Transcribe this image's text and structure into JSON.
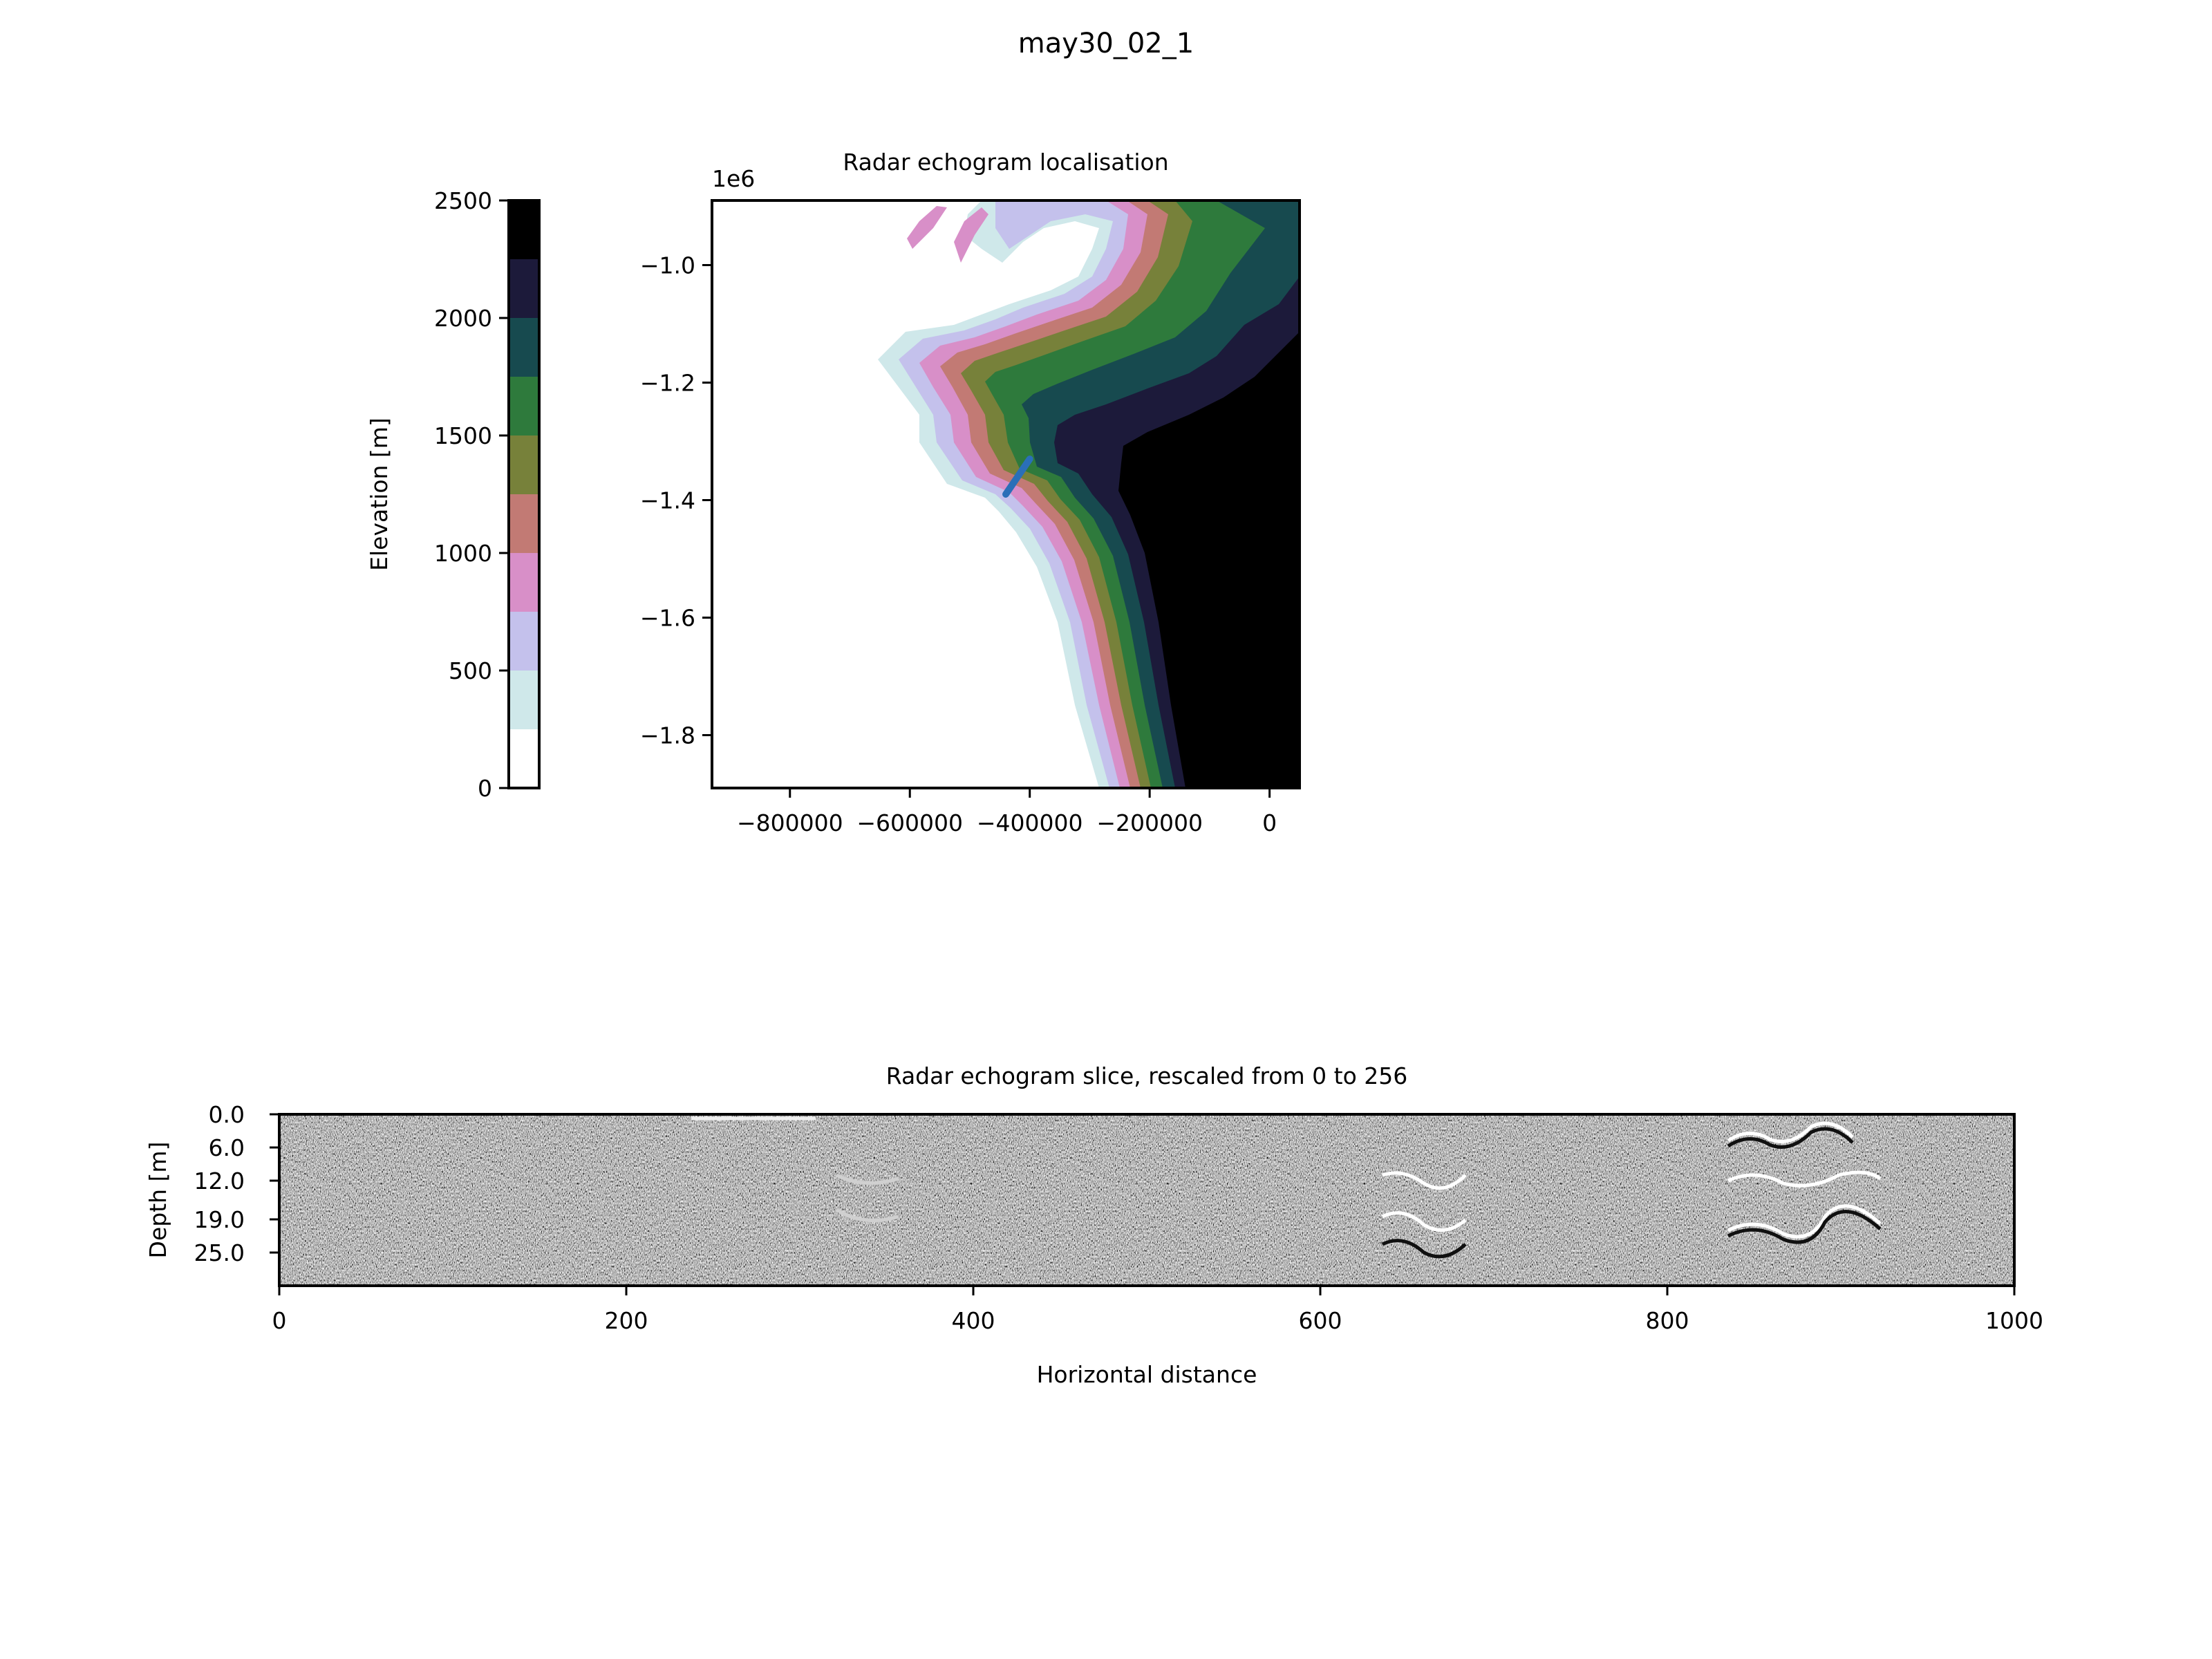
{
  "figure": {
    "title": "may30_02_1"
  },
  "colors": {
    "elevation_bins": [
      "#ffffff",
      "#cfe8ea",
      "#c4c1ec",
      "#d88fc8",
      "#c27a74",
      "#77813a",
      "#2e7a3c",
      "#174a4f",
      "#1c1a3a",
      "#000000"
    ],
    "track": "#2a6fb8",
    "echogram_background": "#808080"
  },
  "chart_data": [
    {
      "type": "colorbar",
      "ylabel": "Elevation [m]",
      "ylim": [
        0,
        2500
      ],
      "ticks": [
        "0",
        "500",
        "1000",
        "1500",
        "2000",
        "2500"
      ],
      "bin_edges": [
        0,
        250,
        500,
        750,
        1000,
        1250,
        1500,
        1750,
        2000,
        2250,
        2500
      ]
    },
    {
      "type": "heatmap",
      "title": "Radar echogram localisation",
      "offset_label": "1e6",
      "xlim": [
        -930000,
        50000
      ],
      "ylim": [
        -1.89,
        -0.89
      ],
      "xticks": [
        "−800000",
        "−600000",
        "−400000",
        "−200000",
        "0"
      ],
      "xtick_values": [
        -800000,
        -600000,
        -400000,
        -200000,
        0
      ],
      "yticks": [
        "−1.8",
        "−1.6",
        "−1.4",
        "−1.2",
        "−1.0"
      ],
      "ytick_values": [
        -1.8,
        -1.6,
        -1.4,
        -1.2,
        -1.0
      ],
      "track": {
        "x": [
          -440000,
          -400000
        ],
        "y": [
          -1.39,
          -1.33
        ]
      }
    },
    {
      "type": "heatmap",
      "title": "Radar echogram slice, rescaled from 0 to 256",
      "xlabel": "Horizontal distance",
      "ylabel": "Depth [m]",
      "xlim": [
        0,
        1000
      ],
      "xticks": [
        "0",
        "200",
        "400",
        "600",
        "800",
        "1000"
      ],
      "xtick_values": [
        0,
        200,
        400,
        600,
        800,
        1000
      ],
      "yticks": [
        "0.0",
        "6.0",
        "12.0",
        "19.0",
        "25.0"
      ],
      "ytick_values": [
        0,
        6,
        12,
        19,
        25
      ],
      "ylim": [
        31,
        0
      ]
    }
  ]
}
